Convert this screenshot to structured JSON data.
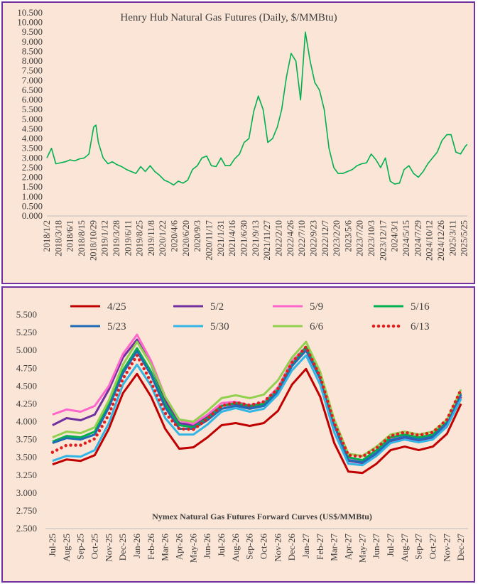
{
  "chart_data": [
    {
      "type": "line",
      "title": "Henry Hub Natural Gas Futures (Daily, $/MMBtu)",
      "xlabel": "",
      "ylabel": "",
      "ylim": [
        0,
        10.5
      ],
      "yticks": [
        "0.000",
        "0.500",
        "1.000",
        "1.500",
        "2.000",
        "2.500",
        "3.000",
        "3.500",
        "4.000",
        "4.500",
        "5.000",
        "5.500",
        "6.000",
        "6.500",
        "7.000",
        "7.500",
        "8.000",
        "8.500",
        "9.000",
        "9.500",
        "10.000",
        "10.500"
      ],
      "xticks": [
        "2018/1/2",
        "2018/3/18",
        "2018/6/1",
        "2018/8/15",
        "2018/10/29",
        "2019/1/12",
        "2019/3/28",
        "2019/6/11",
        "2019/8/25",
        "2019/11/8",
        "2020/1/22",
        "2020/4/6",
        "2020/6/20",
        "2020/9/3",
        "2020/11/17",
        "2021/1/31",
        "2021/4/16",
        "2021/6/30",
        "2021/9/13",
        "2021/11/27",
        "2022/2/10",
        "2022/4/26",
        "2022/7/10",
        "2022/9/23",
        "2022/12/7",
        "2023/2/20",
        "2023/5/6",
        "2023/7/20",
        "2023/10/3",
        "2023/12/17",
        "2024/3/1",
        "2024/5/15",
        "2024/7/29",
        "2024/10/12",
        "2024/12/26",
        "2025/3/11",
        "2025/5/25"
      ],
      "grid": false,
      "color": "#00b050",
      "series": [
        {
          "x": [
            "2018/1/2",
            "2018/2/1",
            "2018/3/1",
            "2018/4/1",
            "2018/5/1",
            "2018/6/1",
            "2018/7/1",
            "2018/8/1",
            "2018/9/1",
            "2018/10/1",
            "2018/11/1",
            "2018/11/15",
            "2018/12/1",
            "2019/1/1",
            "2019/2/1",
            "2019/3/1",
            "2019/4/1",
            "2019/5/1",
            "2019/6/1",
            "2019/7/1",
            "2019/8/1",
            "2019/9/1",
            "2019/10/1",
            "2019/11/1",
            "2019/12/1",
            "2020/1/1",
            "2020/2/1",
            "2020/3/1",
            "2020/4/1",
            "2020/5/1",
            "2020/6/1",
            "2020/7/1",
            "2020/8/1",
            "2020/9/1",
            "2020/10/1",
            "2020/11/1",
            "2020/12/1",
            "2021/1/1",
            "2021/2/1",
            "2021/3/1",
            "2021/4/1",
            "2021/5/1",
            "2021/6/1",
            "2021/7/1",
            "2021/8/1",
            "2021/9/1",
            "2021/10/1",
            "2021/11/1",
            "2021/12/1",
            "2022/1/1",
            "2022/2/1",
            "2022/3/1",
            "2022/4/1",
            "2022/5/1",
            "2022/6/1",
            "2022/7/1",
            "2022/8/1",
            "2022/9/1",
            "2022/10/1",
            "2022/11/1",
            "2022/12/1",
            "2023/1/1",
            "2023/2/1",
            "2023/3/1",
            "2023/4/1",
            "2023/5/1",
            "2023/6/1",
            "2023/7/1",
            "2023/8/1",
            "2023/9/1",
            "2023/10/1",
            "2023/11/1",
            "2023/12/1",
            "2024/1/1",
            "2024/2/1",
            "2024/3/1",
            "2024/4/1",
            "2024/5/1",
            "2024/6/1",
            "2024/7/1",
            "2024/8/1",
            "2024/9/1",
            "2024/10/1",
            "2024/11/1",
            "2024/12/1",
            "2025/1/1",
            "2025/2/1",
            "2025/3/1",
            "2025/4/1",
            "2025/5/1",
            "2025/6/1",
            "2025/6/13"
          ],
          "values": [
            3.0,
            3.5,
            2.7,
            2.75,
            2.8,
            2.9,
            2.85,
            2.95,
            3.0,
            3.2,
            4.6,
            4.7,
            3.8,
            3.0,
            2.7,
            2.8,
            2.65,
            2.55,
            2.4,
            2.3,
            2.2,
            2.55,
            2.3,
            2.6,
            2.3,
            2.1,
            1.85,
            1.75,
            1.6,
            1.8,
            1.7,
            1.85,
            2.4,
            2.6,
            3.0,
            3.1,
            2.6,
            2.55,
            3.0,
            2.6,
            2.6,
            2.95,
            3.2,
            3.8,
            4.0,
            5.4,
            6.2,
            5.5,
            3.8,
            4.0,
            4.6,
            5.5,
            7.2,
            8.4,
            8.0,
            6.0,
            9.5,
            8.0,
            6.9,
            6.5,
            5.5,
            3.5,
            2.5,
            2.2,
            2.2,
            2.3,
            2.4,
            2.6,
            2.7,
            2.75,
            3.2,
            2.9,
            2.5,
            3.0,
            1.8,
            1.65,
            1.7,
            2.4,
            2.6,
            2.2,
            2.0,
            2.3,
            2.7,
            3.0,
            3.3,
            3.9,
            4.2,
            4.2,
            3.3,
            3.2,
            3.6,
            3.7
          ]
        }
      ]
    },
    {
      "type": "line",
      "title": "Nymex  Natural  Gas Futures Forward  Curves (US$/MMBtu)",
      "xlabel": "",
      "ylabel": "",
      "ylim": [
        2.5,
        5.5
      ],
      "yticks": [
        "2.500",
        "2.750",
        "3.000",
        "3.250",
        "3.500",
        "3.750",
        "4.000",
        "4.250",
        "4.500",
        "4.750",
        "5.000",
        "5.250",
        "5.500"
      ],
      "categories": [
        "Jul-25",
        "Aug-25",
        "Sep-25",
        "Oct-25",
        "Nov-25",
        "Dec-25",
        "Jan-26",
        "Feb-26",
        "Mar-26",
        "Apr-26",
        "May-26",
        "Jun-26",
        "Jul-26",
        "Aug-26",
        "Sep-26",
        "Oct-26",
        "Nov-26",
        "Dec-26",
        "Jan-27",
        "Feb-27",
        "Mar-27",
        "Apr-27",
        "May-27",
        "Jun-27",
        "Jul-27",
        "Aug-27",
        "Sep-27",
        "Oct-27",
        "Nov-27",
        "Dec-27"
      ],
      "grid": false,
      "legend_position": "top",
      "series": [
        {
          "name": "4/25",
          "color": "#c00000",
          "style": "solid",
          "values": [
            3.4,
            3.47,
            3.45,
            3.53,
            3.9,
            4.4,
            4.67,
            4.35,
            3.9,
            3.62,
            3.64,
            3.78,
            3.95,
            3.98,
            3.94,
            3.98,
            4.15,
            4.52,
            4.74,
            4.35,
            3.7,
            3.3,
            3.28,
            3.41,
            3.6,
            3.65,
            3.6,
            3.65,
            3.83,
            4.25
          ]
        },
        {
          "name": "5/2",
          "color": "#7030a0",
          "style": "solid",
          "values": [
            3.95,
            4.05,
            4.02,
            4.1,
            4.45,
            4.9,
            5.15,
            4.8,
            4.3,
            3.98,
            3.95,
            4.07,
            4.22,
            4.25,
            4.2,
            4.24,
            4.45,
            4.8,
            5.02,
            4.6,
            3.95,
            3.45,
            3.42,
            3.55,
            3.72,
            3.77,
            3.74,
            3.78,
            3.95,
            4.35
          ]
        },
        {
          "name": "5/9",
          "color": "#ff66cc",
          "style": "solid",
          "values": [
            4.1,
            4.17,
            4.14,
            4.22,
            4.5,
            4.95,
            5.22,
            4.85,
            4.35,
            4.02,
            3.97,
            4.1,
            4.26,
            4.28,
            4.23,
            4.27,
            4.48,
            4.85,
            5.05,
            4.63,
            3.98,
            3.48,
            3.44,
            3.57,
            3.75,
            3.8,
            3.76,
            3.8,
            3.97,
            4.37
          ]
        },
        {
          "name": "5/16",
          "color": "#00b050",
          "style": "solid",
          "values": [
            3.72,
            3.8,
            3.78,
            3.86,
            4.25,
            4.72,
            5.03,
            4.7,
            4.25,
            3.95,
            3.92,
            4.05,
            4.22,
            4.26,
            4.22,
            4.25,
            4.45,
            4.8,
            5.05,
            4.62,
            3.98,
            3.5,
            3.46,
            3.6,
            3.78,
            3.82,
            3.78,
            3.82,
            4.0,
            4.4
          ]
        },
        {
          "name": "5/23",
          "color": "#1f6bb5",
          "style": "solid",
          "values": [
            3.7,
            3.77,
            3.75,
            3.82,
            4.2,
            4.68,
            4.99,
            4.65,
            4.2,
            3.9,
            3.9,
            4.02,
            4.18,
            4.22,
            4.18,
            4.22,
            4.42,
            4.78,
            5.0,
            4.6,
            3.95,
            3.46,
            3.43,
            3.56,
            3.74,
            3.79,
            3.75,
            3.79,
            3.98,
            4.38
          ]
        },
        {
          "name": "5/30",
          "color": "#33b5e5",
          "style": "solid",
          "values": [
            3.45,
            3.52,
            3.51,
            3.6,
            3.98,
            4.52,
            4.8,
            4.5,
            4.05,
            3.82,
            3.82,
            3.96,
            4.14,
            4.19,
            4.14,
            4.18,
            4.38,
            4.72,
            4.93,
            4.52,
            3.85,
            3.41,
            3.39,
            3.52,
            3.7,
            3.75,
            3.71,
            3.75,
            3.93,
            4.32
          ]
        },
        {
          "name": "6/6",
          "color": "#92d050",
          "style": "solid",
          "values": [
            3.78,
            3.86,
            3.84,
            3.92,
            4.3,
            4.8,
            5.12,
            4.8,
            4.35,
            4.03,
            4.0,
            4.15,
            4.33,
            4.37,
            4.33,
            4.38,
            4.58,
            4.9,
            5.12,
            4.7,
            4.03,
            3.55,
            3.52,
            3.65,
            3.82,
            3.86,
            3.82,
            3.86,
            4.03,
            4.45
          ]
        },
        {
          "name": "6/13",
          "color": "#e02020",
          "style": "dotted",
          "values": [
            3.57,
            3.67,
            3.67,
            3.76,
            4.1,
            4.6,
            4.93,
            4.55,
            4.12,
            3.9,
            3.89,
            4.04,
            4.22,
            4.27,
            4.23,
            4.28,
            4.46,
            4.83,
            5.05,
            4.63,
            3.98,
            3.53,
            3.51,
            3.63,
            3.8,
            3.85,
            3.81,
            3.85,
            4.03,
            4.45
          ]
        }
      ]
    }
  ]
}
